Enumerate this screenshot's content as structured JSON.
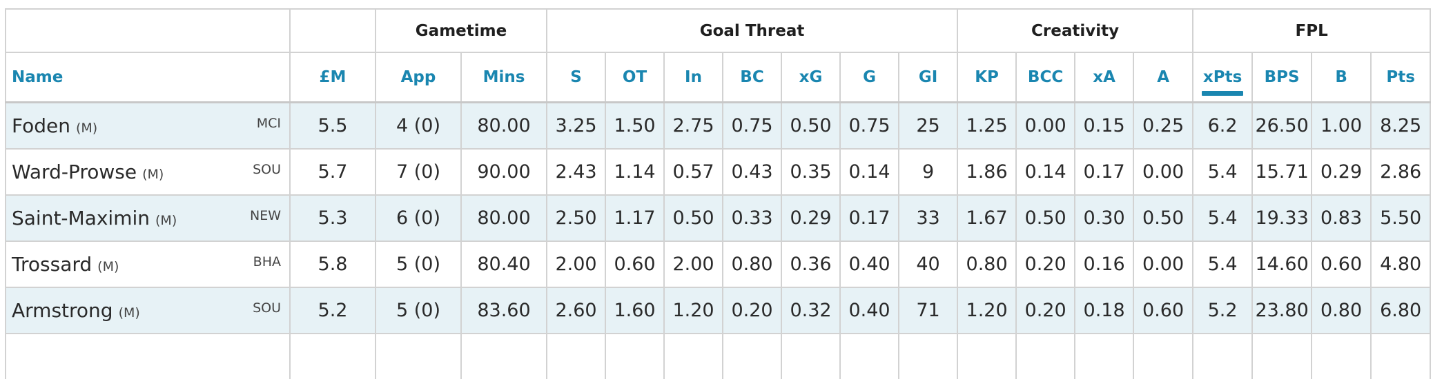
{
  "groups": {
    "gametime": "Gametime",
    "goal_threat": "Goal Threat",
    "creativity": "Creativity",
    "fpl": "FPL"
  },
  "columns": {
    "name": "Name",
    "price": "£M",
    "app": "App",
    "mins": "Mins",
    "s": "S",
    "ot": "OT",
    "in": "In",
    "bc": "BC",
    "xg": "xG",
    "g": "G",
    "gi": "GI",
    "kp": "KP",
    "bcc": "BCC",
    "xa": "xA",
    "a": "A",
    "xpts": "xPts",
    "bps": "BPS",
    "b": "B",
    "pts": "Pts"
  },
  "sorted_column": "xPts",
  "players": [
    {
      "name": "Foden",
      "pos": "(M)",
      "team": "MCI",
      "price": "5.5",
      "app": "4 (0)",
      "mins": "80.00",
      "s": "3.25",
      "ot": "1.50",
      "in": "2.75",
      "bc": "0.75",
      "xg": "0.50",
      "g": "0.75",
      "gi": "25",
      "kp": "1.25",
      "bcc": "0.00",
      "xa": "0.15",
      "a": "0.25",
      "xpts": "6.2",
      "bps": "26.50",
      "b": "1.00",
      "pts": "8.25"
    },
    {
      "name": "Ward-Prowse",
      "pos": "(M)",
      "team": "SOU",
      "price": "5.7",
      "app": "7 (0)",
      "mins": "90.00",
      "s": "2.43",
      "ot": "1.14",
      "in": "0.57",
      "bc": "0.43",
      "xg": "0.35",
      "g": "0.14",
      "gi": "9",
      "kp": "1.86",
      "bcc": "0.14",
      "xa": "0.17",
      "a": "0.00",
      "xpts": "5.4",
      "bps": "15.71",
      "b": "0.29",
      "pts": "2.86"
    },
    {
      "name": "Saint-Maximin",
      "pos": "(M)",
      "team": "NEW",
      "price": "5.3",
      "app": "6 (0)",
      "mins": "80.00",
      "s": "2.50",
      "ot": "1.17",
      "in": "0.50",
      "bc": "0.33",
      "xg": "0.29",
      "g": "0.17",
      "gi": "33",
      "kp": "1.67",
      "bcc": "0.50",
      "xa": "0.30",
      "a": "0.50",
      "xpts": "5.4",
      "bps": "19.33",
      "b": "0.83",
      "pts": "5.50"
    },
    {
      "name": "Trossard",
      "pos": "(M)",
      "team": "BHA",
      "price": "5.8",
      "app": "5 (0)",
      "mins": "80.40",
      "s": "2.00",
      "ot": "0.60",
      "in": "2.00",
      "bc": "0.80",
      "xg": "0.36",
      "g": "0.40",
      "gi": "40",
      "kp": "0.80",
      "bcc": "0.20",
      "xa": "0.16",
      "a": "0.00",
      "xpts": "5.4",
      "bps": "14.60",
      "b": "0.60",
      "pts": "4.80"
    },
    {
      "name": "Armstrong",
      "pos": "(M)",
      "team": "SOU",
      "price": "5.2",
      "app": "5 (0)",
      "mins": "83.60",
      "s": "2.60",
      "ot": "1.60",
      "in": "1.20",
      "bc": "0.20",
      "xg": "0.32",
      "g": "0.40",
      "gi": "71",
      "kp": "1.20",
      "bcc": "0.20",
      "xa": "0.18",
      "a": "0.60",
      "xpts": "5.2",
      "bps": "23.80",
      "b": "0.80",
      "pts": "6.80"
    }
  ]
}
